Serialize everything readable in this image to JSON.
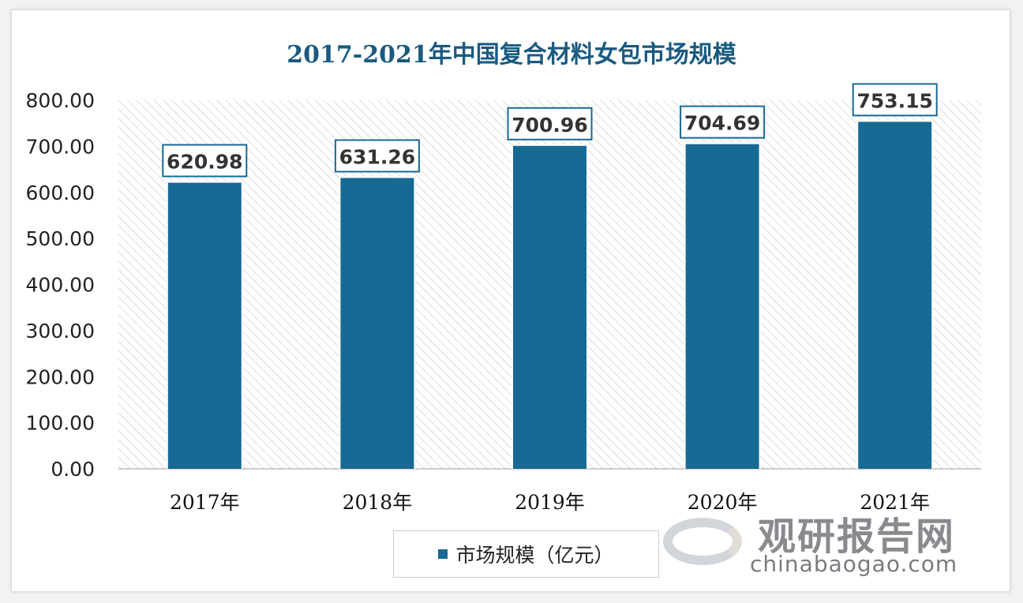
{
  "chart_data": {
    "type": "bar",
    "title": "2017-2021年中国复合材料女包市场规模",
    "categories": [
      "2017年",
      "2018年",
      "2019年",
      "2020年",
      "2021年"
    ],
    "series": [
      {
        "name": "市场规模（亿元）",
        "values": [
          620.98,
          631.26,
          700.96,
          704.69,
          753.15
        ]
      }
    ],
    "data_labels": [
      "620.98",
      "631.26",
      "700.96",
      "704.69",
      "753.15"
    ],
    "ylim": [
      0,
      800
    ],
    "yticks": [
      "0.00",
      "100.00",
      "200.00",
      "300.00",
      "400.00",
      "500.00",
      "600.00",
      "700.00",
      "800.00"
    ],
    "grid": false,
    "legend": "bottom",
    "bar_color": "#176a94",
    "background": "diagonal hatch"
  },
  "watermark": {
    "cn": "观研报告网",
    "en": "chinabaogao.com"
  }
}
